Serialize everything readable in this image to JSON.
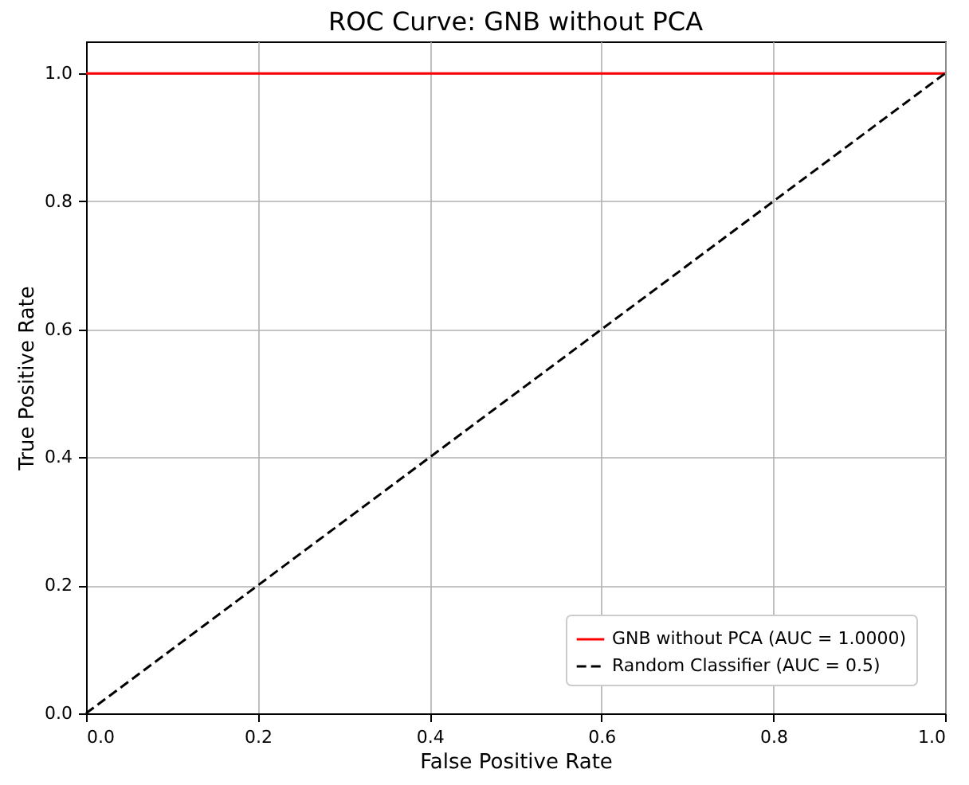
{
  "chart_data": {
    "type": "line",
    "title": "ROC Curve: GNB without PCA",
    "xlabel": "False Positive Rate",
    "ylabel": "True Positive Rate",
    "series": [
      {
        "name": "GNB without PCA (AUC = 1.0000)",
        "color": "#ff0000",
        "values": [
          1,
          1
        ],
        "line_style": "solid"
      },
      {
        "name": "Random Classifier (AUC = 0.5)",
        "color": "#000000",
        "values": [
          0,
          1
        ],
        "line_style": "dashed"
      }
    ],
    "x": [
      0,
      1
    ],
    "xlim": [
      0,
      1
    ],
    "ylim": [
      0,
      1.05
    ],
    "xticks": [
      {
        "value": 0,
        "label": "0.0"
      },
      {
        "value": 0.2,
        "label": "0.2"
      },
      {
        "value": 0.4,
        "label": "0.4"
      },
      {
        "value": 0.6,
        "label": "0.6"
      },
      {
        "value": 0.8,
        "label": "0.8"
      },
      {
        "value": 1,
        "label": "1.0"
      }
    ],
    "yticks": [
      {
        "value": 0,
        "label": "0.0"
      },
      {
        "value": 0.2,
        "label": "0.2"
      },
      {
        "value": 0.4,
        "label": "0.4"
      },
      {
        "value": 0.6,
        "label": "0.6"
      },
      {
        "value": 0.8,
        "label": "0.8"
      },
      {
        "value": 1,
        "label": "1.0"
      }
    ],
    "grid": true,
    "legend": "bottom right",
    "marker": "none"
  }
}
